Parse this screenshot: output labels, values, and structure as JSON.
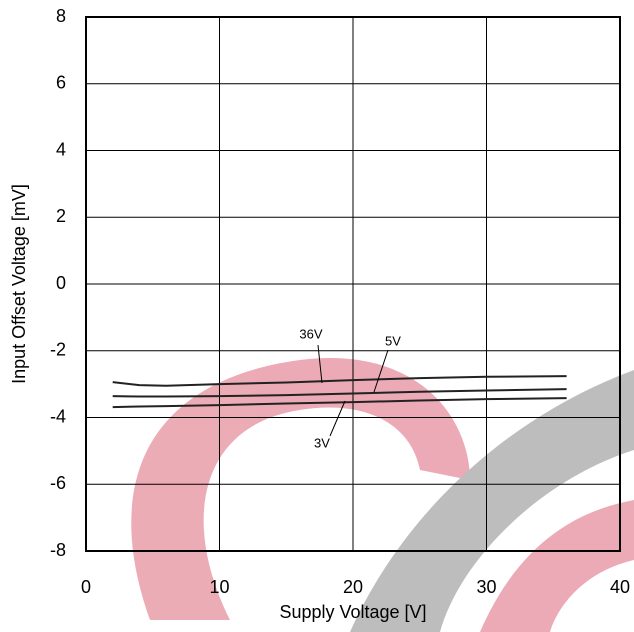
{
  "chart_data": {
    "type": "line",
    "x_label": "Supply Voltage [V]",
    "y_label": "Input Offset Voltage [mV]",
    "x": [
      2,
      4,
      6,
      10,
      15,
      20,
      25,
      30,
      36
    ],
    "series": [
      {
        "name": "36V",
        "color": "#222222",
        "values": [
          -2.94,
          -3.03,
          -3.05,
          -3.0,
          -2.95,
          -2.88,
          -2.82,
          -2.78,
          -2.76
        ]
      },
      {
        "name": "5V",
        "color": "#222222",
        "values": [
          -3.36,
          -3.37,
          -3.37,
          -3.36,
          -3.33,
          -3.28,
          -3.23,
          -3.19,
          -3.15
        ]
      },
      {
        "name": "3V",
        "color": "#222222",
        "values": [
          -3.69,
          -3.67,
          -3.66,
          -3.63,
          -3.58,
          -3.54,
          -3.49,
          -3.45,
          -3.42
        ]
      }
    ],
    "xlim": [
      0,
      40
    ],
    "xticks": [
      0,
      10,
      20,
      30,
      40
    ],
    "ylim": [
      -8,
      8
    ],
    "yticks": [
      -8,
      -6,
      -4,
      -2,
      0,
      2,
      4,
      6,
      8
    ],
    "grid": true
  }
}
